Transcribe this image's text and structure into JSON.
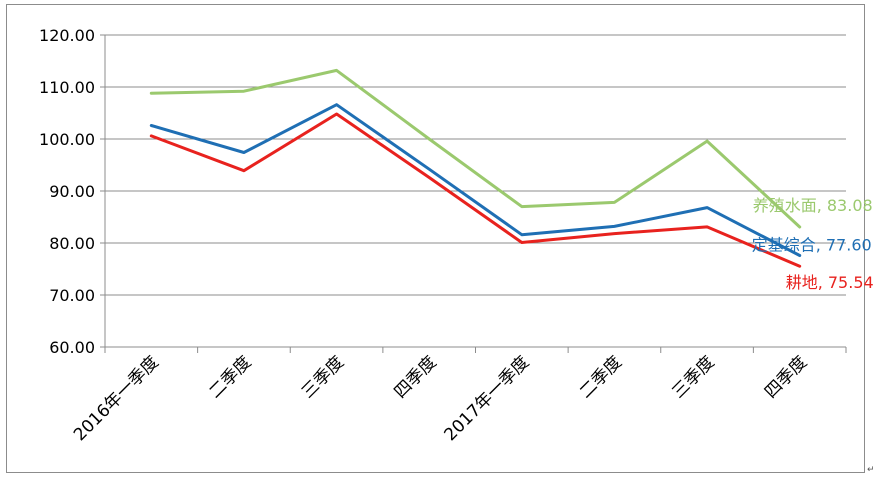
{
  "chart_data": {
    "type": "line",
    "categories": [
      "2016年一季度",
      "二季度",
      "三季度",
      "四季度",
      "2017年一季度",
      "二季度",
      "三季度",
      "四季度"
    ],
    "ylim": [
      60,
      120
    ],
    "yticks": [
      "60.00",
      "70.00",
      "80.00",
      "90.00",
      "100.00",
      "110.00",
      "120.00"
    ],
    "grid": true,
    "series": [
      {
        "name": "养殖水面",
        "color": "#9BC96E",
        "values": [
          108.8,
          109.2,
          113.2,
          100.0,
          87.0,
          87.8,
          99.6,
          83.08
        ],
        "label": "养殖水面, 83.08"
      },
      {
        "name": "定基综合",
        "color": "#1F6FB4",
        "values": [
          102.6,
          97.4,
          106.6,
          94.2,
          81.6,
          83.2,
          86.8,
          77.6
        ],
        "label": "定基综合, 77.60"
      },
      {
        "name": "耕地",
        "color": "#E8221E",
        "values": [
          100.6,
          93.9,
          104.8,
          92.6,
          80.1,
          81.8,
          83.1,
          75.54
        ],
        "label": "耕地, 75.54"
      }
    ]
  },
  "corner_mark": "↵"
}
